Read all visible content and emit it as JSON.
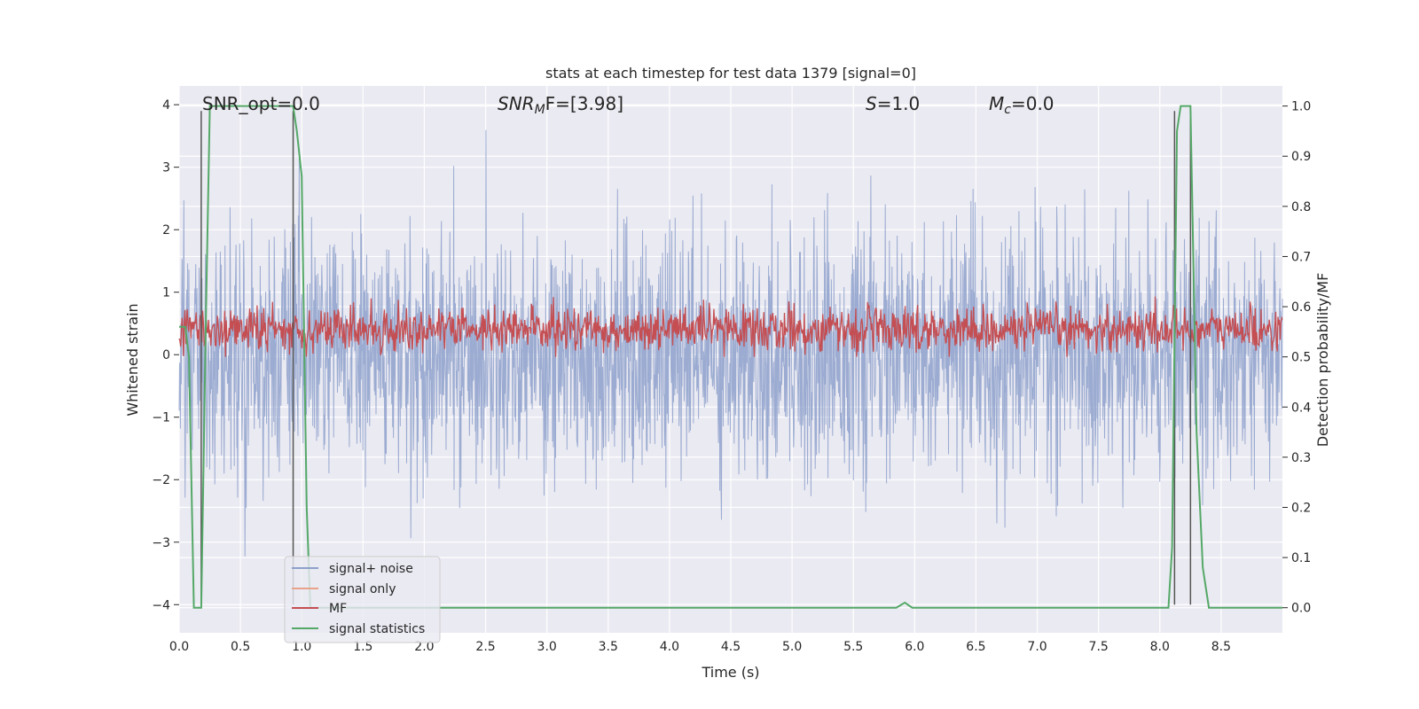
{
  "chart_data": {
    "type": "line",
    "title": "stats at each timestep for test data 1379 [signal=0]",
    "xlabel": "Time (s)",
    "ylabel_left": "Whitened strain",
    "ylabel_right": "Detection probability/MF",
    "xlim": [
      0.0,
      9.0
    ],
    "ylim_left": [
      -4.45,
      4.3
    ],
    "ylim_right": [
      -0.05,
      1.04
    ],
    "x_ticks": [
      "0.0",
      "0.5",
      "1.0",
      "1.5",
      "2.0",
      "2.5",
      "3.0",
      "3.5",
      "4.0",
      "4.5",
      "5.0",
      "5.5",
      "6.0",
      "6.5",
      "7.0",
      "7.5",
      "8.0",
      "8.5"
    ],
    "y_ticks_left": [
      "4",
      "3",
      "2",
      "1",
      "0",
      "−1",
      "−2",
      "−3",
      "−4"
    ],
    "y_ticks_right": [
      "1.0",
      "0.9",
      "0.8",
      "0.7",
      "0.6",
      "0.5",
      "0.4",
      "0.3",
      "0.2",
      "0.1",
      "0.0"
    ],
    "grid": true,
    "legend_position": "lower-left",
    "annotations": {
      "snr_opt": "SNR_opt=0.0",
      "snr_mf_base": "SNR",
      "snr_mf_sub": "M",
      "snr_mf_tail": "F=[3.98]",
      "s_base": "S",
      "s_tail": "=1.0",
      "mc_base": "M",
      "mc_sub": "c",
      "mc_tail": "=0.0"
    },
    "series": [
      {
        "name": "signal+ noise",
        "color": "#8da0cb",
        "axis": "left",
        "description_range": [
          -3.6,
          3.6
        ]
      },
      {
        "name": "signal only",
        "color": "#e8a38a",
        "axis": "left",
        "values": []
      },
      {
        "name": "MF",
        "color": "#c44e52",
        "axis": "right",
        "range": [
          0.5,
          0.62
        ]
      },
      {
        "name": "signal statistics",
        "color": "#55a868",
        "axis": "right",
        "x": [
          0.0,
          0.05,
          0.08,
          0.12,
          0.18,
          0.22,
          0.25,
          0.3,
          0.5,
          0.7,
          0.93,
          0.96,
          1.0,
          1.04,
          1.07,
          1.2,
          2.0,
          3.0,
          4.0,
          5.0,
          5.85,
          5.92,
          5.98,
          6.05,
          7.0,
          8.0,
          8.07,
          8.1,
          8.14,
          8.17,
          8.2,
          8.25,
          8.3,
          8.35,
          8.4,
          9.0
        ],
        "y": [
          0.56,
          0.56,
          0.5,
          0.0,
          0.0,
          0.6,
          1.0,
          1.0,
          1.0,
          1.0,
          1.0,
          0.95,
          0.86,
          0.2,
          0.0,
          0.0,
          0.0,
          0.0,
          0.0,
          0.0,
          0.0,
          0.01,
          0.0,
          0.0,
          0.0,
          0.0,
          0.0,
          0.12,
          0.95,
          1.0,
          1.0,
          1.0,
          0.35,
          0.08,
          0.0,
          0.0
        ]
      }
    ],
    "vlines": [
      0.18,
      0.93,
      8.12,
      8.25
    ]
  }
}
